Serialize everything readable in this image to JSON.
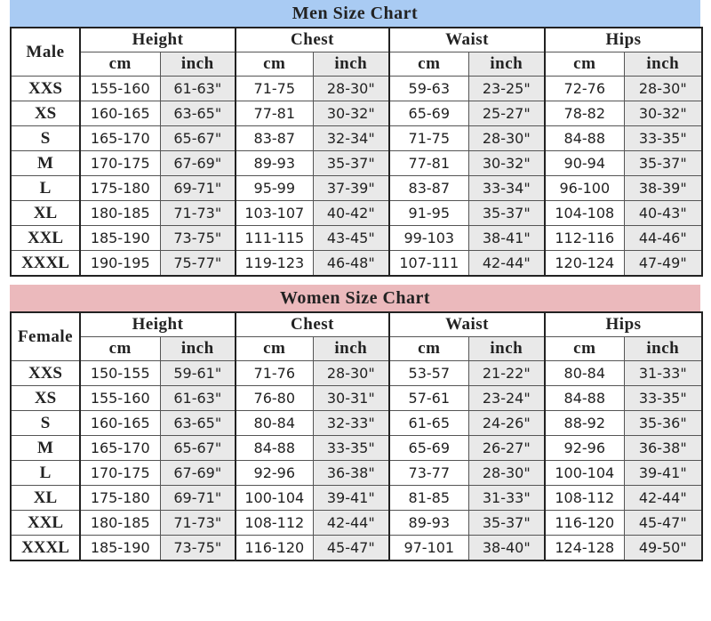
{
  "sections": [
    {
      "title": "Men Size Chart",
      "corner": "Male",
      "groups": [
        "Height",
        "Chest",
        "Waist",
        "Hips"
      ],
      "units": [
        "cm",
        "inch",
        "cm",
        "inch",
        "cm",
        "inch",
        "cm",
        "inch"
      ],
      "rows": [
        {
          "size": "XXS",
          "cells": [
            "155-160",
            "61-63\"",
            "71-75",
            "28-30\"",
            "59-63",
            "23-25\"",
            "72-76",
            "28-30\""
          ]
        },
        {
          "size": "XS",
          "cells": [
            "160-165",
            "63-65\"",
            "77-81",
            "30-32\"",
            "65-69",
            "25-27\"",
            "78-82",
            "30-32\""
          ]
        },
        {
          "size": "S",
          "cells": [
            "165-170",
            "65-67\"",
            "83-87",
            "32-34\"",
            "71-75",
            "28-30\"",
            "84-88",
            "33-35\""
          ]
        },
        {
          "size": "M",
          "cells": [
            "170-175",
            "67-69\"",
            "89-93",
            "35-37\"",
            "77-81",
            "30-32\"",
            "90-94",
            "35-37\""
          ]
        },
        {
          "size": "L",
          "cells": [
            "175-180",
            "69-71\"",
            "95-99",
            "37-39\"",
            "83-87",
            "33-34\"",
            "96-100",
            "38-39\""
          ]
        },
        {
          "size": "XL",
          "cells": [
            "180-185",
            "71-73\"",
            "103-107",
            "40-42\"",
            "91-95",
            "35-37\"",
            "104-108",
            "40-43\""
          ]
        },
        {
          "size": "XXL",
          "cells": [
            "185-190",
            "73-75\"",
            "111-115",
            "43-45\"",
            "99-103",
            "38-41\"",
            "112-116",
            "44-46\""
          ]
        },
        {
          "size": "XXXL",
          "cells": [
            "190-195",
            "75-77\"",
            "119-123",
            "46-48\"",
            "107-111",
            "42-44\"",
            "120-124",
            "47-49\""
          ]
        }
      ]
    },
    {
      "title": "Women Size Chart",
      "corner": "Female",
      "groups": [
        "Height",
        "Chest",
        "Waist",
        "Hips"
      ],
      "units": [
        "cm",
        "inch",
        "cm",
        "inch",
        "cm",
        "inch",
        "cm",
        "inch"
      ],
      "rows": [
        {
          "size": "XXS",
          "cells": [
            "150-155",
            "59-61\"",
            "71-76",
            "28-30\"",
            "53-57",
            "21-22\"",
            "80-84",
            "31-33\""
          ]
        },
        {
          "size": "XS",
          "cells": [
            "155-160",
            "61-63\"",
            "76-80",
            "30-31\"",
            "57-61",
            "23-24\"",
            "84-88",
            "33-35\""
          ]
        },
        {
          "size": "S",
          "cells": [
            "160-165",
            "63-65\"",
            "80-84",
            "32-33\"",
            "61-65",
            "24-26\"",
            "88-92",
            "35-36\""
          ]
        },
        {
          "size": "M",
          "cells": [
            "165-170",
            "65-67\"",
            "84-88",
            "33-35\"",
            "65-69",
            "26-27\"",
            "92-96",
            "36-38\""
          ]
        },
        {
          "size": "L",
          "cells": [
            "170-175",
            "67-69\"",
            "92-96",
            "36-38\"",
            "73-77",
            "28-30\"",
            "100-104",
            "39-41\""
          ]
        },
        {
          "size": "XL",
          "cells": [
            "175-180",
            "69-71\"",
            "100-104",
            "39-41\"",
            "81-85",
            "31-33\"",
            "108-112",
            "42-44\""
          ]
        },
        {
          "size": "XXL",
          "cells": [
            "180-185",
            "71-73\"",
            "108-112",
            "42-44\"",
            "89-93",
            "35-37\"",
            "116-120",
            "45-47\""
          ]
        },
        {
          "size": "XXXL",
          "cells": [
            "185-190",
            "73-75\"",
            "116-120",
            "45-47\"",
            "97-101",
            "38-40\"",
            "124-128",
            "49-50\""
          ]
        }
      ]
    }
  ]
}
